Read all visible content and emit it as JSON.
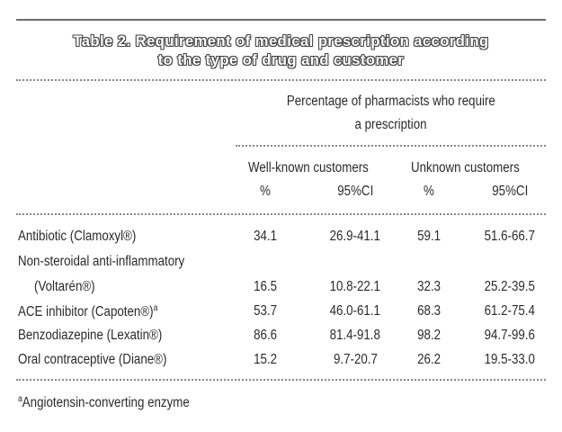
{
  "title_line1": "Table 2. Requirement of medical prescription according",
  "title_line2": "to the type of drug and customer",
  "spanner_line1": "Percentage of pharmacists who require",
  "spanner_line2": "a prescription",
  "group_well_known": "Well-known customers",
  "group_unknown": "Unknown customers",
  "sub_pct": "%",
  "sub_ci": "95%CI",
  "rows": [
    {
      "drug": "Antibiotic (Clamoxyl®)",
      "wk_pct": "34.1",
      "wk_ci": "26.9-41.1",
      "uk_pct": "59.1",
      "uk_ci": "51.6-66.7"
    },
    {
      "drug_line1": "Non-steroidal anti-inflammatory",
      "drug_line2": "(Voltarén®)",
      "wk_pct": "16.5",
      "wk_ci": "10.8-22.1",
      "uk_pct": "32.3",
      "uk_ci": "25.2-39.5"
    },
    {
      "drug": "ACE inhibitor (Capoten®)",
      "drug_sup": "a",
      "wk_pct": "53.7",
      "wk_ci": "46.0-61.1",
      "uk_pct": "68.3",
      "uk_ci": "61.2-75.4"
    },
    {
      "drug": "Benzodiazepine (Lexatin®)",
      "wk_pct": "86.6",
      "wk_ci": "81.4-91.8",
      "uk_pct": "98.2",
      "uk_ci": "94.7-99.6"
    },
    {
      "drug": "Oral contraceptive (Diane®)",
      "wk_pct": "15.2",
      "wk_ci": "9.7-20.7",
      "uk_pct": "26.2",
      "uk_ci": "19.5-33.0"
    }
  ],
  "footnote_mark": "a",
  "footnote_text": "Angiotensin-converting enzyme"
}
